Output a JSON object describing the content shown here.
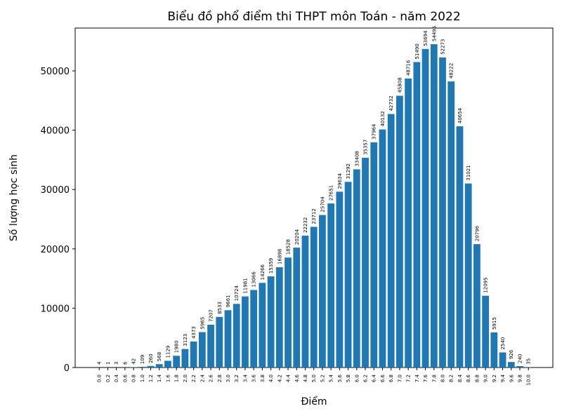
{
  "chart_data": {
    "type": "bar",
    "title": "Biểu đồ phổ điểm thi THPT môn Toán - năm 2022",
    "x_label": "Điểm",
    "y_label": "Số lượng học sinh",
    "categories": [
      "0.0",
      "0.2",
      "0.4",
      "0.6",
      "0.8",
      "1.0",
      "1.2",
      "1.4",
      "1.6",
      "1.8",
      "2.0",
      "2.2",
      "2.4",
      "2.6",
      "2.8",
      "3.0",
      "3.2",
      "3.4",
      "3.6",
      "3.8",
      "4.0",
      "4.2",
      "4.4",
      "4.6",
      "4.8",
      "5.0",
      "5.2",
      "5.4",
      "5.6",
      "5.8",
      "6.0",
      "6.2",
      "6.4",
      "6.6",
      "6.8",
      "7.0",
      "7.2",
      "7.4",
      "7.6",
      "7.8",
      "8.0",
      "8.2",
      "8.4",
      "8.6",
      "8.8",
      "9.0",
      "9.2",
      "9.4",
      "9.6",
      "9.8",
      "10.0"
    ],
    "values": [
      4,
      1,
      3,
      6,
      42,
      109,
      260,
      568,
      1129,
      1980,
      3123,
      4373,
      5965,
      7207,
      8533,
      9661,
      10724,
      11981,
      13066,
      14266,
      15359,
      16898,
      18528,
      20204,
      22232,
      23712,
      25704,
      27651,
      29634,
      31292,
      33408,
      35357,
      37964,
      40132,
      42732,
      45808,
      48716,
      51490,
      53694,
      54495,
      52273,
      48222,
      40654,
      31021,
      20796,
      12095,
      5915,
      2540,
      926,
      240,
      35
    ],
    "color": "#1f77b4",
    "ylim": [
      0,
      57220
    ],
    "yticks": [
      0,
      10000,
      20000,
      30000,
      40000,
      50000
    ],
    "grid": false
  }
}
